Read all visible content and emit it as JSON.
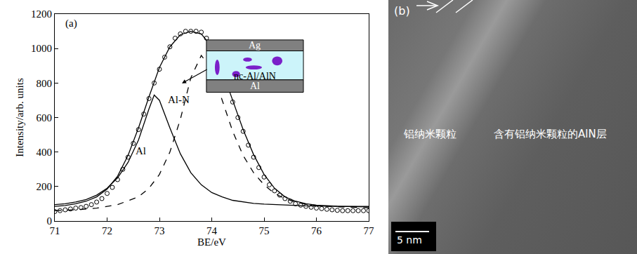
{
  "chart_data": {
    "type": "line",
    "x_label": "BE/eV",
    "y_label": "Intensity/arb. units",
    "xlim": [
      71,
      77
    ],
    "xticks": [
      71,
      72,
      73,
      74,
      75,
      76,
      77
    ],
    "ylim": [
      0,
      1200
    ],
    "yticks": [
      0,
      200,
      400,
      600,
      800,
      1000,
      1200
    ],
    "grid": false,
    "annotations": [
      "(a)",
      "Al",
      "Al-N"
    ],
    "inset_labels": [
      "Ag",
      "nc-Al/AlN",
      "Al"
    ],
    "series": [
      {
        "type": "scatter",
        "marker": "circle-open",
        "color": "#000000",
        "x": [
          71.0,
          71.1,
          71.2,
          71.3,
          71.4,
          71.5,
          71.6,
          71.7,
          71.8,
          71.9,
          72.0,
          72.1,
          72.2,
          72.3,
          72.4,
          72.5,
          72.6,
          72.7,
          72.8,
          72.9,
          73.0,
          73.1,
          73.2,
          73.3,
          73.4,
          73.5,
          73.6,
          73.7,
          73.8,
          73.9,
          74.0,
          74.1,
          74.2,
          74.3,
          74.4,
          74.5,
          74.6,
          74.7,
          74.8,
          74.9,
          75.0,
          75.1,
          75.2,
          75.3,
          75.4,
          75.5,
          75.6,
          75.7,
          75.8,
          75.9,
          76.0,
          76.1,
          76.2,
          76.3,
          76.4,
          76.5,
          76.6,
          76.7,
          76.8,
          76.9,
          77.0
        ],
        "values": [
          55,
          60,
          65,
          70,
          75,
          78,
          85,
          95,
          110,
          130,
          160,
          195,
          240,
          300,
          370,
          450,
          530,
          620,
          710,
          800,
          880,
          950,
          1010,
          1060,
          1085,
          1100,
          1100,
          1100,
          1095,
          1060,
          1010,
          940,
          860,
          780,
          690,
          600,
          520,
          440,
          370,
          310,
          255,
          210,
          175,
          150,
          130,
          115,
          100,
          92,
          85,
          80,
          75,
          72,
          68,
          65,
          62,
          60,
          60,
          60,
          60,
          60,
          60
        ]
      },
      {
        "type": "line",
        "line_style": "solid",
        "color": "#000000",
        "x": [
          71.0,
          71.2,
          71.4,
          71.6,
          71.8,
          72.0,
          72.2,
          72.4,
          72.6,
          72.8,
          73.0,
          73.2,
          73.4,
          73.6,
          73.8,
          74.0,
          74.2,
          74.4,
          74.6,
          74.8,
          75.0,
          75.2,
          75.4,
          75.6,
          75.8,
          76.0,
          76.2,
          76.4,
          76.6,
          76.8,
          77.0
        ],
        "values": [
          85,
          90,
          100,
          115,
          140,
          185,
          260,
          380,
          540,
          720,
          890,
          1010,
          1080,
          1100,
          1085,
          1010,
          870,
          700,
          530,
          385,
          270,
          190,
          140,
          115,
          100,
          92,
          88,
          86,
          85,
          85,
          85
        ]
      },
      {
        "name": "Al",
        "type": "line",
        "line_style": "solid",
        "color": "#000000",
        "x": [
          71.0,
          71.2,
          71.4,
          71.6,
          71.8,
          72.0,
          72.2,
          72.4,
          72.6,
          72.8,
          72.9,
          73.0,
          73.2,
          73.4,
          73.6,
          73.8,
          74.0,
          74.2,
          74.4,
          74.6,
          74.8,
          75.0,
          75.4,
          75.8,
          76.2,
          76.6,
          77.0
        ],
        "values": [
          95,
          100,
          110,
          125,
          150,
          190,
          250,
          340,
          470,
          650,
          730,
          700,
          540,
          390,
          280,
          210,
          165,
          140,
          120,
          110,
          102,
          98,
          92,
          88,
          86,
          84,
          82
        ]
      },
      {
        "name": "Al-N",
        "type": "line",
        "line_style": "dashed",
        "color": "#000000",
        "x": [
          71.0,
          71.4,
          71.8,
          72.2,
          72.6,
          72.8,
          73.0,
          73.2,
          73.4,
          73.6,
          73.8,
          74.0,
          74.2,
          74.4,
          74.6,
          74.8,
          75.0,
          75.2,
          75.4,
          75.6,
          75.8,
          76.0,
          76.4,
          76.8,
          77.0
        ],
        "values": [
          60,
          65,
          75,
          95,
          140,
          190,
          270,
          400,
          590,
          830,
          960,
          880,
          700,
          520,
          380,
          280,
          210,
          160,
          130,
          110,
          98,
          90,
          82,
          78,
          77
        ]
      }
    ]
  },
  "panel_b": {
    "label": "(b)",
    "texts": [
      "铝纳米颗粒",
      "含有铝纳米颗粒的AlN层"
    ],
    "scale_bar": "5 nm"
  }
}
